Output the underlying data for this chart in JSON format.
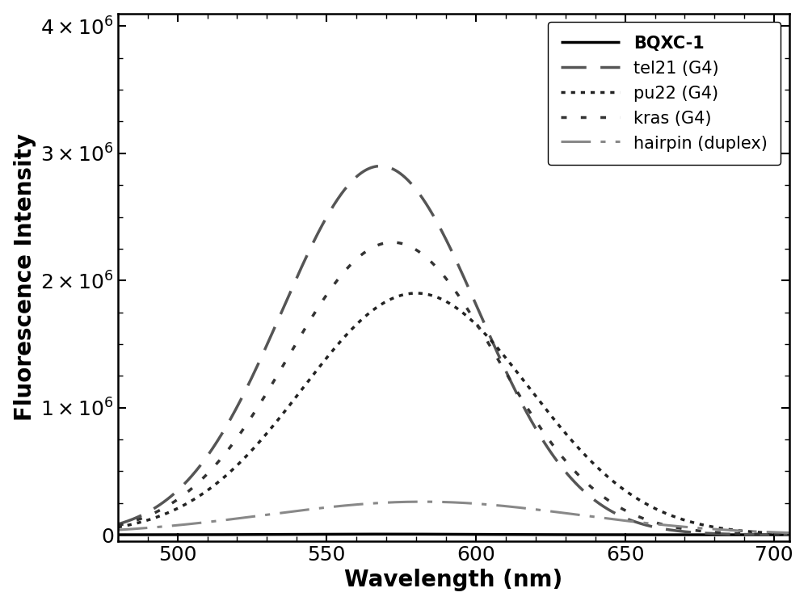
{
  "xlabel": "Wavelength (nm)",
  "ylabel": "Fluorescence Intensity",
  "xlim": [
    480,
    705
  ],
  "ylim": [
    -50000,
    4100000
  ],
  "yticks": [
    0,
    1000000,
    2000000,
    3000000,
    4000000
  ],
  "xticks": [
    500,
    550,
    600,
    650,
    700
  ],
  "background_color": "#ffffff",
  "series": [
    {
      "label": "BQXC-1",
      "color": "#000000",
      "linestyle": "solid",
      "linewidth": 2.5,
      "peak": 5000,
      "peak_x": 570,
      "sigma": 30
    },
    {
      "label": "tel21 (G4)",
      "color": "#555555",
      "linestyle": "dashed",
      "linewidth": 2.5,
      "peak": 2900000,
      "peak_x": 568,
      "sigma": 33
    },
    {
      "label": "pu22 (G4)",
      "color": "#222222",
      "linestyle": "dotted",
      "linewidth": 2.5,
      "peak": 1900000,
      "peak_x": 580,
      "sigma": 38
    },
    {
      "label": "kras (G4)",
      "color": "#333333",
      "linestyle": "loose_dotdot",
      "linewidth": 2.5,
      "peak": 2300000,
      "peak_x": 572,
      "sigma": 35
    },
    {
      "label": "hairpin (duplex)",
      "color": "#888888",
      "linestyle": "dashdot_long",
      "linewidth": 2.2,
      "peak": 260000,
      "peak_x": 582,
      "sigma": 52
    }
  ],
  "legend_loc": "upper right",
  "label_fontsize": 20,
  "tick_fontsize": 18,
  "legend_fontsize": 15
}
